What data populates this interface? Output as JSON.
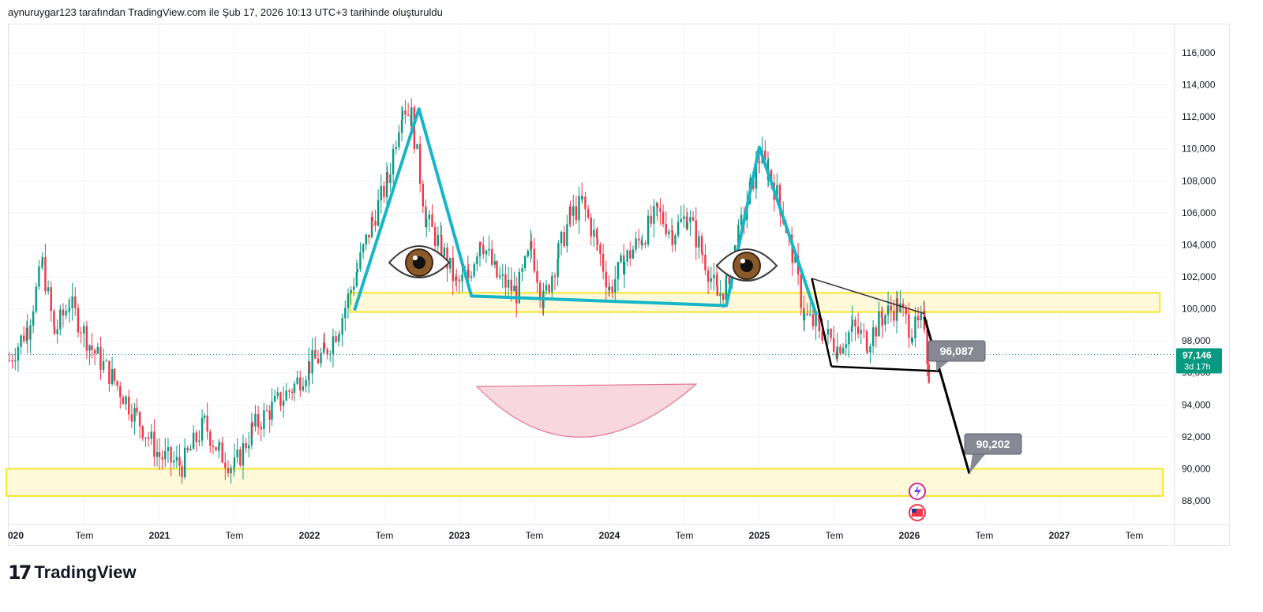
{
  "header": {
    "attribution": "aynuruygar123 tarafından TradingView.com ile Şub 17, 2026 10:13 UTC+3 tarihinde oluşturuldu"
  },
  "logo": {
    "text": "TradingView"
  },
  "colors": {
    "up": "#089981",
    "down": "#f23645",
    "pattern": "#15b6c7",
    "zone_fill": "#fff9d9",
    "zone_border": "#f5e52a",
    "callout": "#868993",
    "price_label": "#089981",
    "smile": "#f8d7df"
  },
  "chart_data": {
    "type": "candlestick",
    "symbol_note": "",
    "ylim": [
      87000,
      117500
    ],
    "xlim": [
      2019.98,
      2027.9
    ],
    "y_ticks": [
      "116,000",
      "114,000",
      "112,000",
      "110,000",
      "108,000",
      "106,000",
      "104,000",
      "102,000",
      "100,000",
      "98,000",
      "96,000",
      "94,000",
      "92,000",
      "90,000",
      "88,000"
    ],
    "y_tick_values": [
      116000,
      114000,
      112000,
      110000,
      108000,
      106000,
      104000,
      102000,
      100000,
      98000,
      96000,
      94000,
      92000,
      90000,
      88000
    ],
    "x_ticks": [
      {
        "label": "020",
        "t": 2020.0,
        "bold": true
      },
      {
        "label": "Tem",
        "t": 2020.5,
        "bold": false
      },
      {
        "label": "2021",
        "t": 2021.0,
        "bold": true
      },
      {
        "label": "Tem",
        "t": 2021.5,
        "bold": false
      },
      {
        "label": "2022",
        "t": 2022.0,
        "bold": true
      },
      {
        "label": "Tem",
        "t": 2022.5,
        "bold": false
      },
      {
        "label": "2023",
        "t": 2023.0,
        "bold": true
      },
      {
        "label": "Tem",
        "t": 2023.5,
        "bold": false
      },
      {
        "label": "2024",
        "t": 2024.0,
        "bold": true
      },
      {
        "label": "Tem",
        "t": 2024.5,
        "bold": false
      },
      {
        "label": "2025",
        "t": 2025.0,
        "bold": true
      },
      {
        "label": "Tem",
        "t": 2025.5,
        "bold": false
      },
      {
        "label": "2026",
        "t": 2026.0,
        "bold": true
      },
      {
        "label": "Tem",
        "t": 2026.5,
        "bold": false
      },
      {
        "label": "2027",
        "t": 2027.0,
        "bold": true
      },
      {
        "label": "Tem",
        "t": 2027.5,
        "bold": false
      }
    ],
    "price_path": [
      [
        2020.0,
        96.8
      ],
      [
        2020.12,
        98.8
      ],
      [
        2020.22,
        102.8
      ],
      [
        2020.3,
        98.5
      ],
      [
        2020.4,
        100.4
      ],
      [
        2020.55,
        97.5
      ],
      [
        2020.7,
        95.5
      ],
      [
        2020.85,
        93.2
      ],
      [
        2021.0,
        90.8
      ],
      [
        2021.15,
        90.2
      ],
      [
        2021.3,
        92.8
      ],
      [
        2021.4,
        91.0
      ],
      [
        2021.5,
        90.1
      ],
      [
        2021.62,
        92.5
      ],
      [
        2021.75,
        93.8
      ],
      [
        2021.9,
        95.2
      ],
      [
        2022.0,
        96.5
      ],
      [
        2022.1,
        97.2
      ],
      [
        2022.2,
        99.0
      ],
      [
        2022.32,
        102.5
      ],
      [
        2022.42,
        105.5
      ],
      [
        2022.52,
        108.0
      ],
      [
        2022.62,
        112.8
      ],
      [
        2022.68,
        112.0
      ],
      [
        2022.78,
        105.5
      ],
      [
        2022.88,
        103.8
      ],
      [
        2022.98,
        101.5
      ],
      [
        2023.06,
        102.0
      ],
      [
        2023.14,
        104.5
      ],
      [
        2023.25,
        102.0
      ],
      [
        2023.38,
        101.0
      ],
      [
        2023.48,
        103.8
      ],
      [
        2023.56,
        100.5
      ],
      [
        2023.66,
        103.5
      ],
      [
        2023.74,
        105.8
      ],
      [
        2023.82,
        106.6
      ],
      [
        2023.92,
        104.0
      ],
      [
        2024.0,
        101.2
      ],
      [
        2024.1,
        103.0
      ],
      [
        2024.22,
        104.5
      ],
      [
        2024.32,
        106.0
      ],
      [
        2024.42,
        104.8
      ],
      [
        2024.52,
        105.8
      ],
      [
        2024.62,
        103.5
      ],
      [
        2024.72,
        100.8
      ],
      [
        2024.78,
        101.5
      ],
      [
        2024.86,
        104.5
      ],
      [
        2024.94,
        107.5
      ],
      [
        2025.0,
        109.5
      ],
      [
        2025.06,
        108.6
      ],
      [
        2025.14,
        106.5
      ],
      [
        2025.22,
        103.5
      ],
      [
        2025.3,
        99.5
      ],
      [
        2025.4,
        98.8
      ],
      [
        2025.52,
        97.6
      ],
      [
        2025.62,
        98.8
      ],
      [
        2025.72,
        98.0
      ],
      [
        2025.82,
        99.5
      ],
      [
        2025.92,
        100.2
      ],
      [
        2026.02,
        98.6
      ],
      [
        2026.1,
        99.2
      ],
      [
        2026.13,
        96.0
      ],
      [
        2026.14,
        97.146
      ]
    ],
    "current_price": {
      "value": 97146,
      "label": "97,146",
      "countdown": "3d 17h"
    },
    "zones": [
      {
        "name": "resistance-zone",
        "y_low": 99800,
        "y_high": 101000,
        "x_start": 2022.27,
        "x_end": 2027.67
      },
      {
        "name": "support-zone",
        "y_low": 88300,
        "y_high": 90000,
        "x_start": 2019.98,
        "x_end": 2027.69
      }
    ],
    "head_shoulders": [
      [
        2022.3,
        99.9
      ],
      [
        2022.73,
        112.5
      ],
      [
        2023.08,
        100.8
      ],
      [
        2024.78,
        100.2
      ],
      [
        2025.0,
        110.1
      ],
      [
        2025.38,
        99.6
      ]
    ],
    "triangle": {
      "upper": [
        [
          2025.35,
          101.9
        ],
        [
          2026.1,
          99.7
        ]
      ],
      "lower": [
        [
          2025.48,
          96.4
        ],
        [
          2026.2,
          96.1
        ]
      ]
    },
    "projection": [
      [
        2026.1,
        99.5
      ],
      [
        2026.4,
        89.7
      ]
    ],
    "callouts": [
      {
        "label": "96,087",
        "value": 96087,
        "tip": [
          2026.18,
          96.1
        ]
      },
      {
        "label": "90,202",
        "value": 90202,
        "tip": [
          2026.4,
          89.7
        ]
      }
    ]
  }
}
